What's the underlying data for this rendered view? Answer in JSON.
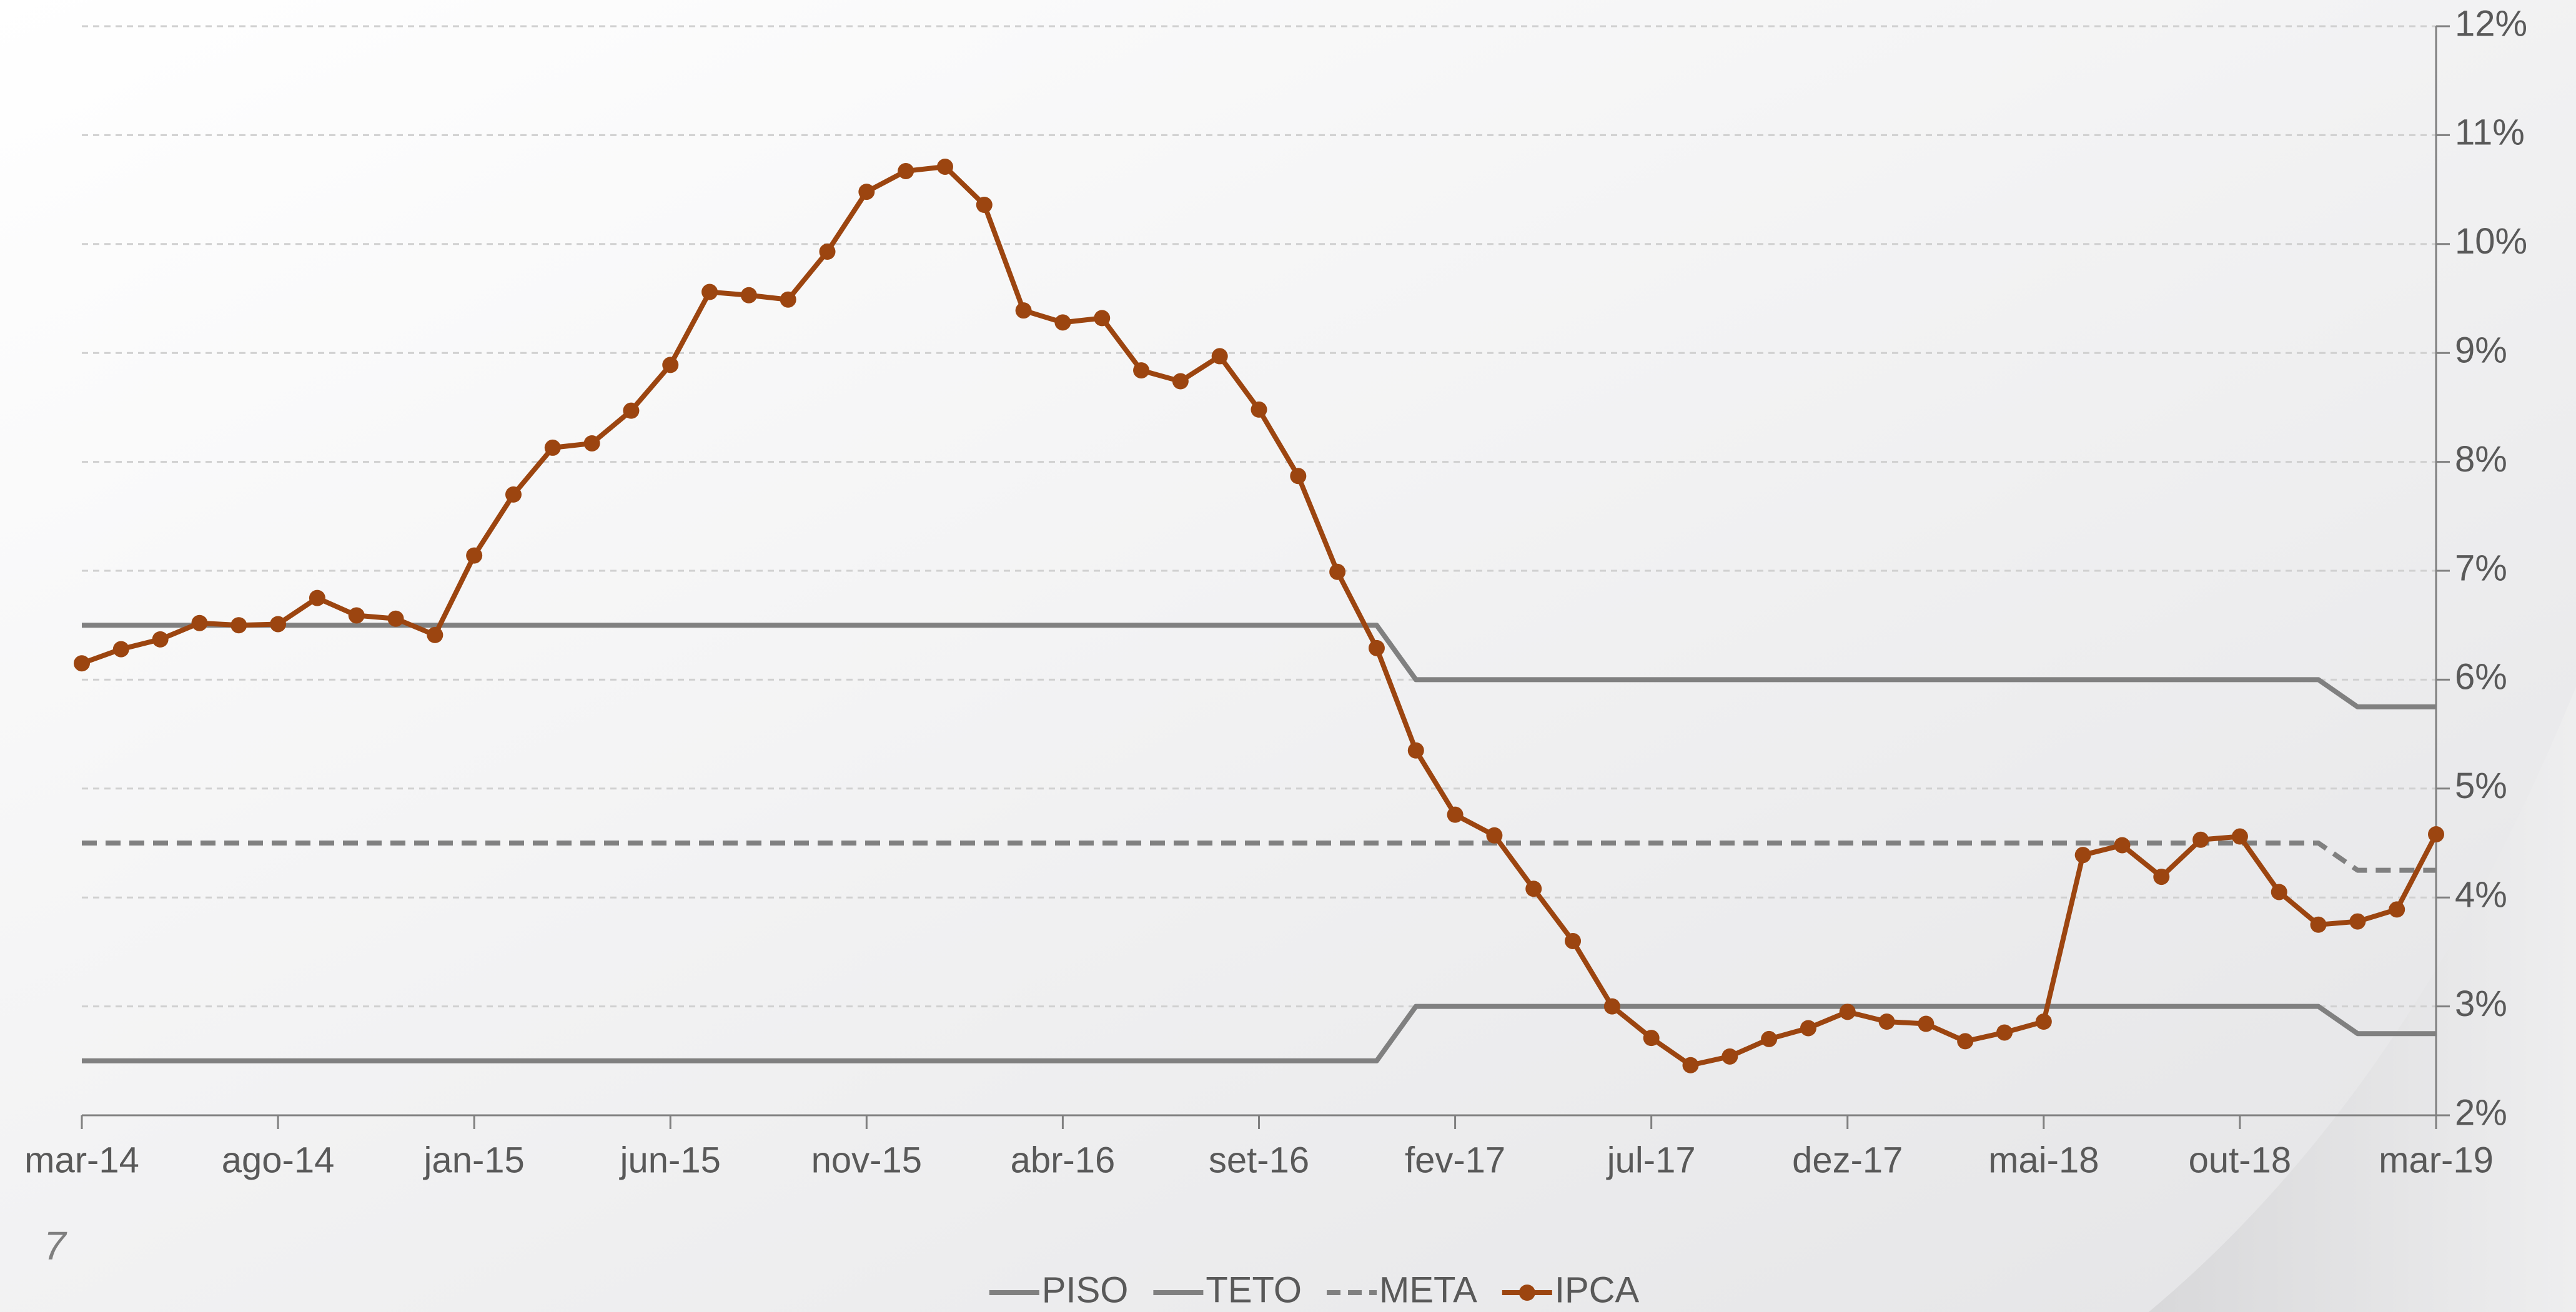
{
  "page_number": "7",
  "chart_data": {
    "type": "line",
    "categories": [
      "mar-14",
      null,
      null,
      null,
      null,
      "ago-14",
      null,
      null,
      null,
      null,
      "jan-15",
      null,
      null,
      null,
      null,
      "jun-15",
      null,
      null,
      null,
      null,
      "nov-15",
      null,
      null,
      null,
      null,
      "abr-16",
      null,
      null,
      null,
      null,
      "set-16",
      null,
      null,
      null,
      null,
      "fev-17",
      null,
      null,
      null,
      null,
      "jul-17",
      null,
      null,
      null,
      null,
      "dez-17",
      null,
      null,
      null,
      null,
      "mai-18",
      null,
      null,
      null,
      null,
      "out-18",
      null,
      null,
      null,
      null,
      "mar-19"
    ],
    "series": [
      {
        "name": "PISO",
        "color": "#808080",
        "dash": false,
        "markers": false,
        "values": [
          2.5,
          2.5,
          2.5,
          2.5,
          2.5,
          2.5,
          2.5,
          2.5,
          2.5,
          2.5,
          2.5,
          2.5,
          2.5,
          2.5,
          2.5,
          2.5,
          2.5,
          2.5,
          2.5,
          2.5,
          2.5,
          2.5,
          2.5,
          2.5,
          2.5,
          2.5,
          2.5,
          2.5,
          2.5,
          2.5,
          2.5,
          2.5,
          2.5,
          2.5,
          3,
          3,
          3,
          3,
          3,
          3,
          3,
          3,
          3,
          3,
          3,
          3,
          3,
          3,
          3,
          3,
          3,
          3,
          3,
          3,
          3,
          3,
          3,
          3,
          2.75,
          2.75,
          2.75
        ]
      },
      {
        "name": "TETO",
        "color": "#808080",
        "dash": false,
        "markers": false,
        "values": [
          6.5,
          6.5,
          6.5,
          6.5,
          6.5,
          6.5,
          6.5,
          6.5,
          6.5,
          6.5,
          6.5,
          6.5,
          6.5,
          6.5,
          6.5,
          6.5,
          6.5,
          6.5,
          6.5,
          6.5,
          6.5,
          6.5,
          6.5,
          6.5,
          6.5,
          6.5,
          6.5,
          6.5,
          6.5,
          6.5,
          6.5,
          6.5,
          6.5,
          6.5,
          6,
          6,
          6,
          6,
          6,
          6,
          6,
          6,
          6,
          6,
          6,
          6,
          6,
          6,
          6,
          6,
          6,
          6,
          6,
          6,
          6,
          6,
          6,
          6,
          5.75,
          5.75,
          5.75
        ]
      },
      {
        "name": "META",
        "color": "#808080",
        "dash": true,
        "markers": false,
        "values": [
          4.5,
          4.5,
          4.5,
          4.5,
          4.5,
          4.5,
          4.5,
          4.5,
          4.5,
          4.5,
          4.5,
          4.5,
          4.5,
          4.5,
          4.5,
          4.5,
          4.5,
          4.5,
          4.5,
          4.5,
          4.5,
          4.5,
          4.5,
          4.5,
          4.5,
          4.5,
          4.5,
          4.5,
          4.5,
          4.5,
          4.5,
          4.5,
          4.5,
          4.5,
          4.5,
          4.5,
          4.5,
          4.5,
          4.5,
          4.5,
          4.5,
          4.5,
          4.5,
          4.5,
          4.5,
          4.5,
          4.5,
          4.5,
          4.5,
          4.5,
          4.5,
          4.5,
          4.5,
          4.5,
          4.5,
          4.5,
          4.5,
          4.5,
          4.25,
          4.25,
          4.25
        ]
      },
      {
        "name": "IPCA",
        "color": "#9c4510",
        "dash": false,
        "markers": true,
        "values": [
          6.15,
          6.28,
          6.37,
          6.52,
          6.5,
          6.51,
          6.75,
          6.59,
          6.56,
          6.41,
          7.14,
          7.7,
          8.13,
          8.17,
          8.47,
          8.89,
          9.56,
          9.53,
          9.49,
          9.93,
          10.48,
          10.67,
          10.71,
          10.36,
          9.39,
          9.28,
          9.32,
          8.84,
          8.74,
          8.97,
          8.48,
          7.87,
          6.99,
          6.29,
          5.35,
          4.76,
          4.57,
          4.08,
          3.6,
          3.0,
          2.71,
          2.46,
          2.54,
          2.7,
          2.8,
          2.95,
          2.86,
          2.84,
          2.68,
          2.76,
          2.86,
          4.39,
          4.48,
          4.19,
          4.53,
          4.56,
          4.05,
          3.75,
          3.78,
          3.89,
          4.58
        ]
      }
    ],
    "ylim": [
      2,
      12
    ],
    "yticks": [
      {
        "value": 2,
        "label": "2%"
      },
      {
        "value": 3,
        "label": "3%"
      },
      {
        "value": 4,
        "label": "4%"
      },
      {
        "value": 5,
        "label": "5%"
      },
      {
        "value": 6,
        "label": "6%"
      },
      {
        "value": 7,
        "label": "7%"
      },
      {
        "value": 8,
        "label": "8%"
      },
      {
        "value": 9,
        "label": "9%"
      },
      {
        "value": 10,
        "label": "10%"
      },
      {
        "value": 11,
        "label": "11%"
      },
      {
        "value": 12,
        "label": "12%"
      }
    ],
    "grid": true,
    "legend": "bottom"
  }
}
